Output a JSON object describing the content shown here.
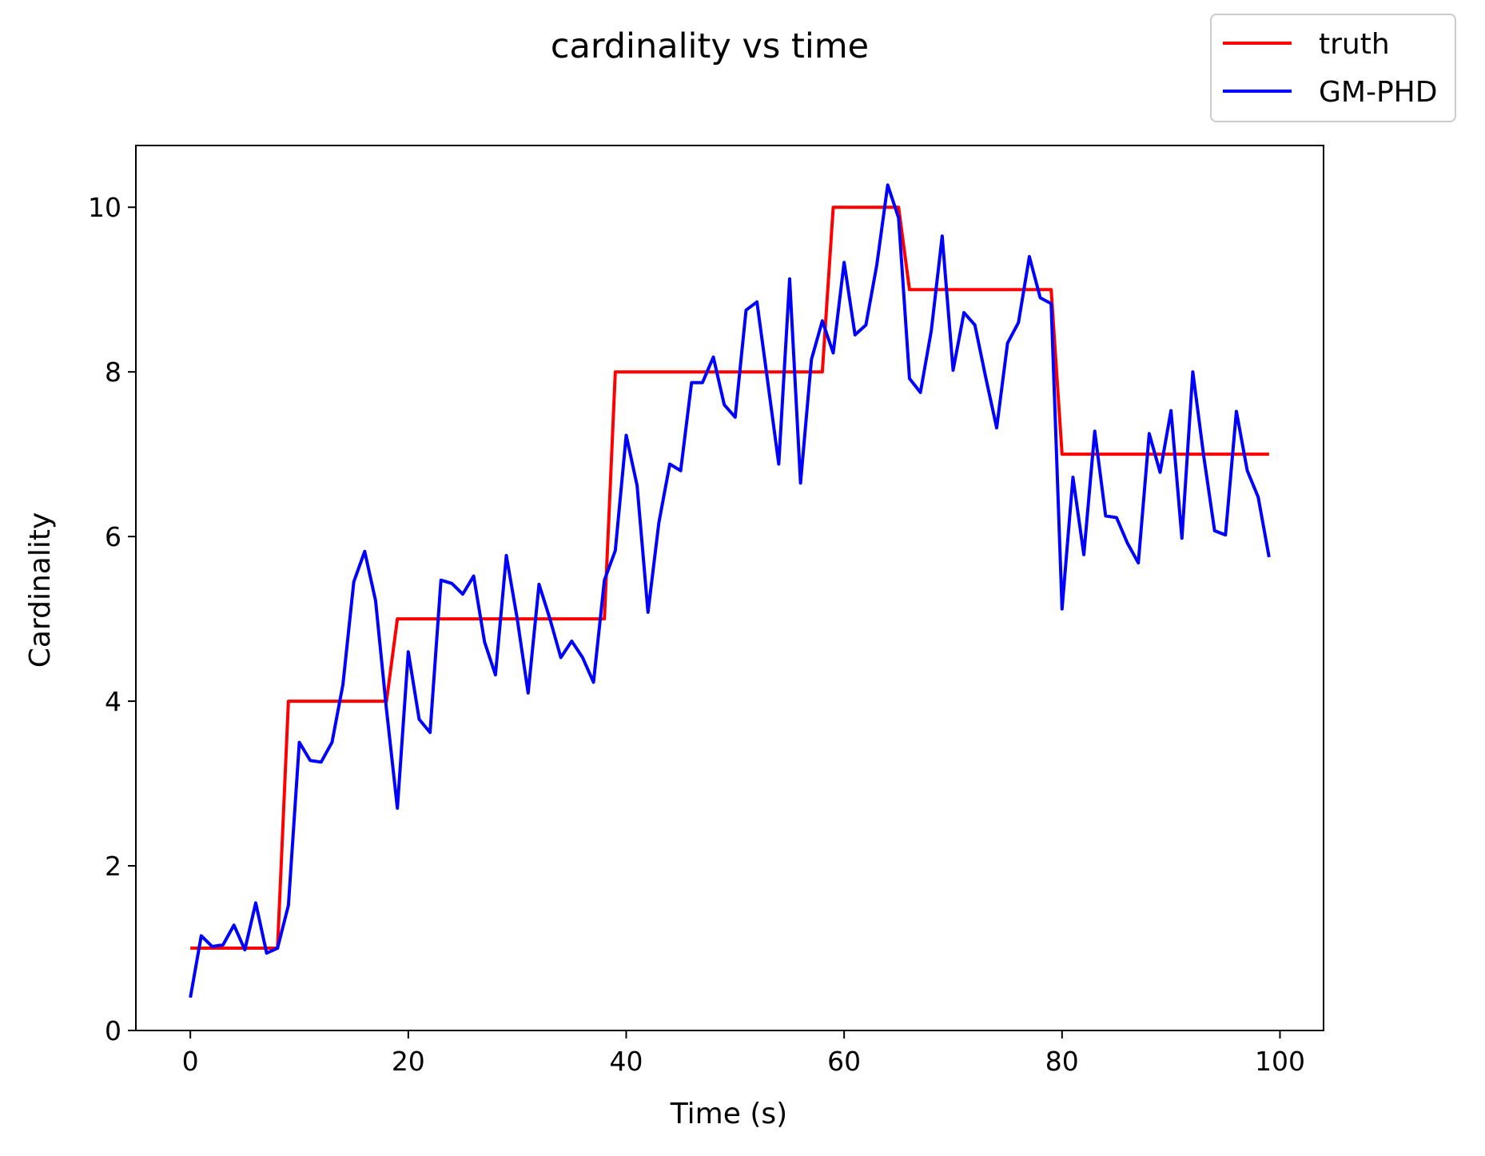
{
  "chart_data": {
    "type": "line",
    "title": "cardinality vs time",
    "xlabel": "Time (s)",
    "ylabel": "Cardinality",
    "xlim": [
      -5,
      104
    ],
    "ylim": [
      0,
      10.75
    ],
    "xticks": [
      0,
      20,
      40,
      60,
      80,
      100
    ],
    "yticks": [
      0,
      2,
      4,
      6,
      8,
      10
    ],
    "grid": false,
    "legend_position": "top-right (outside axes)",
    "series": [
      {
        "name": "truth",
        "color": "#ff0000",
        "x": [
          0,
          8,
          9,
          18,
          19,
          38,
          39,
          58,
          59,
          65,
          66,
          79,
          80,
          99
        ],
        "y": [
          1,
          1,
          4,
          4,
          5,
          5,
          8,
          8,
          10,
          10,
          9,
          9,
          7,
          7
        ]
      },
      {
        "name": "GM-PHD",
        "color": "#0000ff",
        "x": [
          0,
          1,
          2,
          3,
          4,
          5,
          6,
          7,
          8,
          9,
          10,
          11,
          12,
          13,
          14,
          15,
          16,
          17,
          18,
          19,
          20,
          21,
          22,
          23,
          24,
          25,
          26,
          27,
          28,
          29,
          30,
          31,
          32,
          33,
          34,
          35,
          36,
          37,
          38,
          39,
          40,
          41,
          42,
          43,
          44,
          45,
          46,
          47,
          48,
          49,
          50,
          51,
          52,
          53,
          54,
          55,
          56,
          57,
          58,
          59,
          60,
          61,
          62,
          63,
          64,
          65,
          66,
          67,
          68,
          69,
          70,
          71,
          72,
          73,
          74,
          75,
          76,
          77,
          78,
          79,
          80,
          81,
          82,
          83,
          84,
          85,
          86,
          87,
          88,
          89,
          90,
          91,
          92,
          93,
          94,
          95,
          96,
          97,
          98,
          99
        ],
        "y": [
          0.4,
          1.15,
          1.02,
          1.04,
          1.28,
          0.98,
          1.55,
          0.94,
          1.0,
          1.52,
          3.5,
          3.28,
          3.26,
          3.5,
          4.2,
          5.45,
          5.82,
          5.22,
          3.9,
          2.7,
          4.6,
          3.78,
          3.62,
          5.47,
          5.43,
          5.3,
          5.52,
          4.72,
          4.32,
          5.77,
          5.0,
          4.1,
          5.42,
          5.0,
          4.53,
          4.73,
          4.53,
          4.23,
          5.47,
          5.83,
          7.23,
          6.62,
          5.08,
          6.17,
          6.88,
          6.8,
          7.87,
          7.87,
          8.18,
          7.6,
          7.45,
          8.75,
          8.85,
          7.87,
          6.88,
          9.13,
          6.65,
          8.15,
          8.62,
          8.23,
          9.33,
          8.45,
          8.57,
          9.3,
          10.27,
          9.87,
          7.92,
          7.75,
          8.5,
          9.65,
          8.02,
          8.72,
          8.57,
          7.93,
          7.32,
          8.35,
          8.6,
          9.4,
          8.9,
          8.83,
          5.12,
          6.72,
          5.78,
          7.28,
          6.25,
          6.23,
          5.92,
          5.68,
          7.25,
          6.78,
          7.53,
          5.98,
          8.0,
          6.98,
          6.07,
          6.02,
          7.52,
          6.8,
          6.48,
          5.75
        ]
      }
    ]
  }
}
